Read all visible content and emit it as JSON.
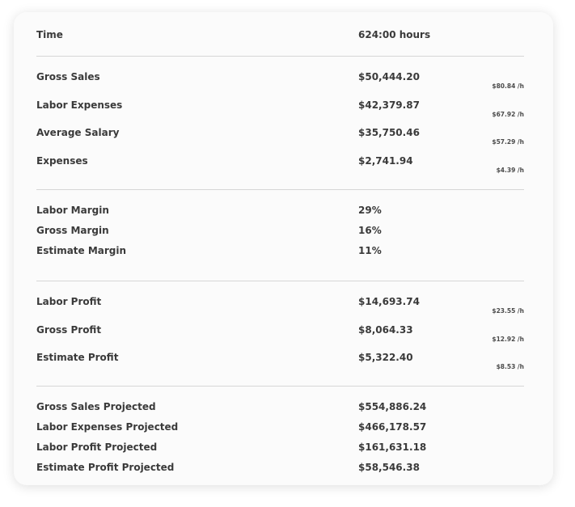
{
  "sections": [
    {
      "rows": [
        {
          "label": "Time",
          "value": "624:00 hours"
        }
      ]
    },
    {
      "rows": [
        {
          "label": "Gross Sales",
          "value": "$50,444.20",
          "rate": "$80.84 /h"
        },
        {
          "label": "Labor Expenses",
          "value": "$42,379.87",
          "rate": "$67.92 /h"
        },
        {
          "label": "Average Salary",
          "value": "$35,750.46",
          "rate": "$57.29 /h"
        },
        {
          "label": "Expenses",
          "value": "$2,741.94",
          "rate": "$4.39 /h"
        }
      ]
    },
    {
      "rows": [
        {
          "label": "Labor Margin",
          "value": "29%"
        },
        {
          "label": "Gross Margin",
          "value": "16%"
        },
        {
          "label": "Estimate Margin",
          "value": "11%"
        }
      ]
    },
    {
      "rows": [
        {
          "label": "Labor Profit",
          "value": "$14,693.74",
          "rate": "$23.55 /h"
        },
        {
          "label": "Gross Profit",
          "value": "$8,064.33",
          "rate": "$12.92 /h"
        },
        {
          "label": "Estimate Profit",
          "value": "$5,322.40",
          "rate": "$8.53 /h"
        }
      ]
    },
    {
      "rows": [
        {
          "label": "Gross Sales Projected",
          "value": "$554,886.24"
        },
        {
          "label": "Labor Expenses Projected",
          "value": "$466,178.57"
        },
        {
          "label": "Labor Profit Projected",
          "value": "$161,631.18"
        },
        {
          "label": "Estimate Profit Projected",
          "value": "$58,546.38"
        }
      ]
    }
  ]
}
